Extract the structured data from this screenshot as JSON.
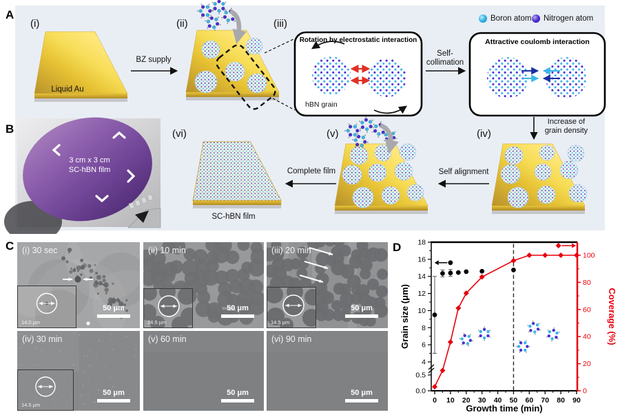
{
  "panelA": {
    "label": "A",
    "step_i": "(i)",
    "step_ii": "(ii)",
    "step_iii": "(iii)",
    "step_iv": "(iv)",
    "step_v": "(v)",
    "step_vi": "(vi)",
    "liquid_au": "Liquid Au",
    "bz_supply": "BZ supply",
    "rotation_box": {
      "title": "Rotation by electrostatic interaction",
      "grain_label": "hBN grain"
    },
    "self_collimation_line1": "Self-",
    "self_collimation_line2": "collimation",
    "coulomb_box": {
      "title": "Attractive coulomb interaction"
    },
    "increase_line1": "Increase of",
    "increase_line2": "grain density",
    "self_alignment": "Self alignment",
    "complete_film": "Complete film",
    "sc_hbn_film": "SC-hBN film",
    "legend": {
      "boron": "Boron atom",
      "nitrogen": "Nitrogen atom",
      "boron_color": "#3ab6e9",
      "nitrogen_color": "#4a30cf"
    }
  },
  "panelB": {
    "label": "B",
    "wafer_line1": "3 cm x 3 cm",
    "wafer_line2": "SC-hBN film"
  },
  "panelC": {
    "label": "C",
    "tiles": [
      {
        "label": "(i) 30 sec",
        "scale": "50 μm",
        "inset": "14.0 μm"
      },
      {
        "label": "(ii) 10 min",
        "scale": "50 μm",
        "inset": "14.5 μm"
      },
      {
        "label": "(iii) 20 min",
        "scale": "50 μm",
        "inset": "14.5 μm"
      },
      {
        "label": "(iv) 30 min",
        "scale": "50 μm",
        "inset": "14.5 μm"
      },
      {
        "label": "(v) 60 min",
        "scale": "50 μm"
      },
      {
        "label": "(vi) 90 min",
        "scale": "50 μm"
      }
    ]
  },
  "panelD": {
    "label": "D"
  },
  "chart_data": {
    "type": "line",
    "xlabel": "Growth time (min)",
    "ylabel_left": "Grain size (μm)",
    "ylabel_right": "Coverage (%)",
    "x_range": [
      0,
      90
    ],
    "x_ticks": [
      0,
      10,
      20,
      30,
      40,
      50,
      60,
      70,
      80,
      90
    ],
    "left_axis": {
      "ticks": [
        "0.0",
        "0.5",
        "4",
        "6",
        "8",
        "10",
        "12",
        "14",
        "16",
        "18"
      ],
      "break_between": [
        0.5,
        4
      ]
    },
    "right_axis": {
      "ticks": [
        0,
        20,
        40,
        60,
        80,
        100
      ],
      "range": [
        0,
        110
      ],
      "color": "#e8000d"
    },
    "dashed_guide_x": 50,
    "series": [
      {
        "name": "Grain size",
        "axis": "left",
        "type": "scatter",
        "color": "#000000",
        "marker": "circle",
        "points": [
          [
            0,
            9.5
          ],
          [
            5,
            14.35
          ],
          [
            10,
            14.4
          ],
          [
            15,
            14.45
          ],
          [
            20,
            14.55
          ],
          [
            30,
            14.6
          ],
          [
            50,
            14.75
          ]
        ],
        "error_bars": [
          [
            0,
            4.5
          ],
          [
            5,
            0.4
          ],
          [
            10,
            0.4
          ]
        ]
      },
      {
        "name": "Coverage",
        "axis": "right",
        "type": "line",
        "color": "#e8000d",
        "marker": "diamond",
        "points": [
          [
            0,
            3
          ],
          [
            5,
            15
          ],
          [
            10,
            36
          ],
          [
            15,
            61
          ],
          [
            20,
            72
          ],
          [
            30,
            84
          ],
          [
            50,
            96
          ],
          [
            60,
            100
          ],
          [
            70,
            100
          ],
          [
            80,
            100
          ],
          [
            90,
            100
          ]
        ]
      }
    ]
  }
}
